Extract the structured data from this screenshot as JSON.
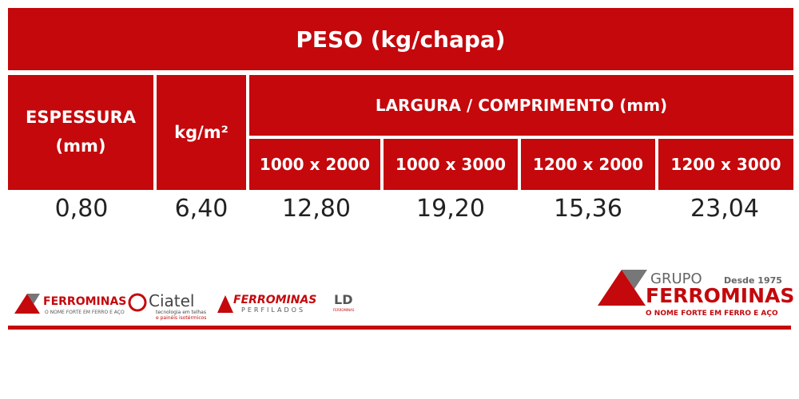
{
  "header": {
    "title": "PESO (kg/chapa)"
  },
  "table": {
    "columns": {
      "thickness": [
        "ESPESSURA",
        "(mm)"
      ],
      "per_m2": "kg/m²",
      "group": "LARGURA / COMPRIMENTO (mm)",
      "sizes": [
        "1000 x 2000",
        "1000 x 3000",
        "1200 x 2000",
        "1200 x 3000"
      ]
    },
    "rows": [
      [
        "0,80",
        "6,40",
        "12,80",
        "19,20",
        "15,36",
        "23,04"
      ]
    ]
  },
  "footer": {
    "ferrominas": {
      "name": "FERROMINAS",
      "tagline": "O NOME FORTE EM FERRO E AÇO"
    },
    "ciatel": {
      "name": "Ciatel",
      "line1": "tecnologia em telhas",
      "line2": "e painéis isotérmicos"
    },
    "perfilados": {
      "name": "FERROMINAS",
      "sub": "PERFILADOS"
    },
    "ld": {
      "name": "LD",
      "sub": "FERROMINAS"
    },
    "grupo": {
      "prefix": "GRUPO",
      "since": "Desde 1975",
      "name": "FERROMINAS",
      "tagline": "O NOME FORTE EM FERRO E AÇO"
    }
  }
}
